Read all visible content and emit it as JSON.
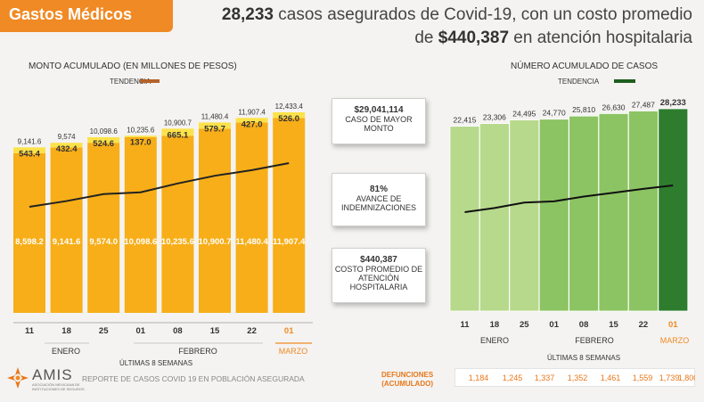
{
  "header": {
    "section_title": "Gastos Médicos",
    "headline_bold_1": "28,233",
    "headline_rest_1": " casos asegurados de Covid-19, con un costo promedio",
    "headline_pre_2": "de ",
    "headline_bold_2": "$440,387",
    "headline_rest_2": " en atención hospitalaria"
  },
  "colors": {
    "orange": "#f08a24",
    "bar_orange": "#f7ae18",
    "bar_yellow": "#fce24a",
    "trend_brown": "#b5622a",
    "trend_green": "#1e5e1e",
    "green_light": "#b7d98c",
    "green_mid": "#8cc463",
    "green_dark": "#2e7d2e"
  },
  "left_chart": {
    "title": "MONTO ACUMULADO (EN MILLONES DE PESOS)",
    "legend": "TENDENCIA",
    "months": [
      "ENERO",
      "FEBRERO",
      "MARZO"
    ],
    "weeks_label": "ÚLTIMAS 8 SEMANAS"
  },
  "right_chart": {
    "title": "NÚMERO ACUMULADO DE CASOS",
    "legend": "TENDENCIA",
    "months": [
      "ENERO",
      "FEBRERO",
      "MARZO"
    ],
    "weeks_label": "ÚLTIMAS 8 SEMANAS"
  },
  "chart_data": [
    {
      "type": "bar",
      "categories": [
        "11",
        "18",
        "25",
        "01",
        "08",
        "15",
        "22",
        "01"
      ],
      "series": [
        {
          "values": [
            8598.2,
            9141.6,
            9574.0,
            10098.6,
            10235.6,
            10900.7,
            11480.4,
            11907.4
          ]
        },
        {
          "values": [
            543.4,
            432.4,
            524.6,
            137.0,
            665.1,
            579.7,
            427.0,
            526.0
          ]
        }
      ],
      "totals": [
        "9,141.6",
        "9,574",
        "10,098.6",
        "10,235.6",
        "10,900.7",
        "11,480.4",
        "11,907.4",
        "12,433.4"
      ],
      "base_labels": [
        "8,598.2",
        "9,141.6",
        "9,574.0",
        "10,098.6",
        "10,235.6",
        "10,900.7",
        "11,480.4",
        "11,907.4"
      ],
      "increment_labels": [
        "543.4",
        "432.4",
        "524.6",
        "137.0",
        "665.1",
        "579.7",
        "427.0",
        "526.0"
      ],
      "title": "MONTO ACUMULADO (EN MILLONES DE PESOS)",
      "legend": "top-right"
    },
    {
      "type": "bar",
      "categories": [
        "11",
        "18",
        "25",
        "01",
        "08",
        "15",
        "22",
        "01"
      ],
      "values": [
        22415,
        23306,
        24495,
        24770,
        25810,
        26630,
        27487,
        28233
      ],
      "labels": [
        "22,415",
        "23,306",
        "24,495",
        "24,770",
        "25,810",
        "26,630",
        "27,487",
        "28,233"
      ],
      "title": "NÚMERO ACUMULADO DE CASOS",
      "legend": "top-right"
    }
  ],
  "kpis": [
    {
      "value": "$29,041,114",
      "label": "CASO DE MAYOR MONTO"
    },
    {
      "value": "81%",
      "label": "AVANCE DE INDEMNIZACIONES"
    },
    {
      "value": "$440,387",
      "label": "COSTO PROMEDIO DE ATENCIÓN HOSPITALARIA"
    }
  ],
  "deaths": {
    "label_line1": "DEFUNCIONES",
    "label_line2": "(ACUMULADO)",
    "values": [
      "1,184",
      "1,245",
      "1,337",
      "1,352",
      "1,461",
      "1,559",
      "1,739",
      "1,800"
    ]
  },
  "footer": {
    "logo_text": "AMIS",
    "logo_sub": "ASOCIACIÓN MEXICANA DE INSTITUCIONES DE SEGUROS",
    "report": "REPORTE DE CASOS COVID 19 EN POBLACIÓN ASEGURADA"
  }
}
